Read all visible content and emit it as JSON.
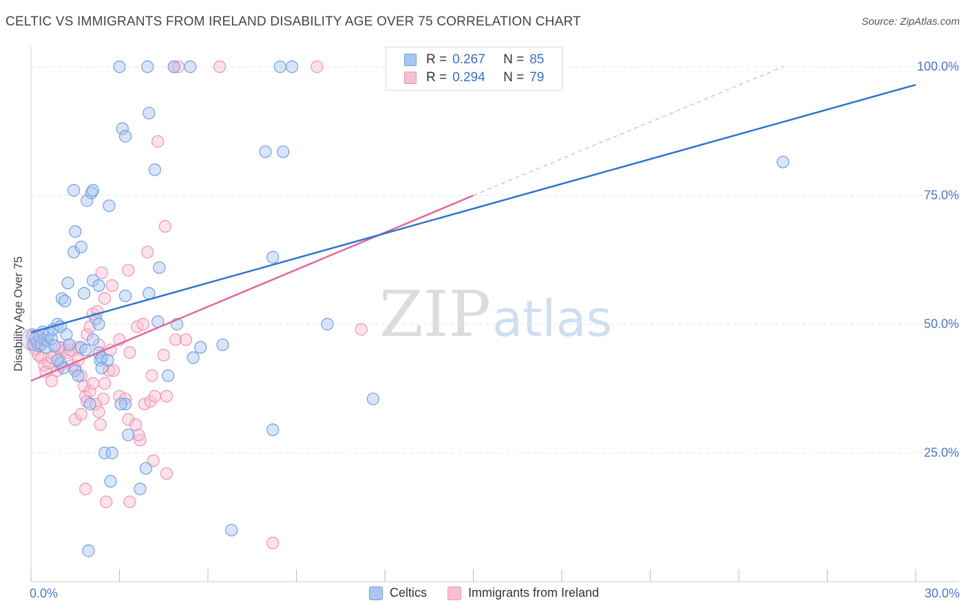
{
  "header": {
    "title": "CELTIC VS IMMIGRANTS FROM IRELAND DISABILITY AGE OVER 75 CORRELATION CHART",
    "source": "Source: ZipAtlas.com"
  },
  "watermark": {
    "zip": "ZIP",
    "atlas": "atlas"
  },
  "legend": {
    "r_label": "R =",
    "n_label": "N =",
    "series": [
      {
        "r": "0.267",
        "n": "85"
      },
      {
        "r": "0.294",
        "n": "79"
      }
    ]
  },
  "bottom_legend": {
    "celtics": "Celtics",
    "ireland": "Immigrants from Ireland"
  },
  "colors": {
    "celtics_fill": "#a9c6ef",
    "celtics_stroke": "#6f9fe0",
    "celtics_line": "#2f72d0",
    "ireland_fill": "#f6bfd2",
    "ireland_stroke": "#ee93b3",
    "ireland_line": "#e0669a",
    "axis_label": "#4a78c2"
  },
  "chart_data": {
    "type": "scatter",
    "title": "CELTIC VS IMMIGRANTS FROM IRELAND DISABILITY AGE OVER 75 CORRELATION CHART",
    "xlabel": "",
    "ylabel": "Disability Age Over 75",
    "xlim": [
      0,
      30
    ],
    "ylim": [
      0,
      105
    ],
    "x_ticks": [
      0,
      3,
      6,
      9,
      12,
      15,
      18,
      21,
      24,
      27,
      30
    ],
    "x_tick_labels": {
      "0": "0.0%",
      "30": "30.0%"
    },
    "y_ticks": [
      25,
      50,
      75,
      100
    ],
    "y_tick_labels": [
      "25.0%",
      "50.0%",
      "75.0%",
      "100.0%"
    ],
    "grid": true,
    "series": [
      {
        "name": "Celtics",
        "r": 0.267,
        "n": 85,
        "trend": {
          "x": [
            0,
            30
          ],
          "y": [
            48.4,
            96.5
          ]
        },
        "points": [
          [
            0.05,
            47.8
          ],
          [
            0.1,
            46.0
          ],
          [
            0.15,
            47.2
          ],
          [
            0.2,
            46.5
          ],
          [
            0.25,
            45.8
          ],
          [
            0.3,
            47.5
          ],
          [
            0.35,
            46.0
          ],
          [
            0.4,
            48.5
          ],
          [
            0.45,
            47.0
          ],
          [
            0.5,
            45.5
          ],
          [
            0.55,
            46.8
          ],
          [
            0.6,
            48.0
          ],
          [
            0.7,
            47.2
          ],
          [
            0.75,
            49.0
          ],
          [
            0.8,
            45.8
          ],
          [
            0.9,
            50.0
          ],
          [
            1.0,
            49.5
          ],
          [
            1.05,
            55.0
          ],
          [
            1.15,
            54.5
          ],
          [
            1.25,
            58.0
          ],
          [
            1.45,
            64.0
          ],
          [
            1.5,
            68.0
          ],
          [
            1.45,
            76.0
          ],
          [
            1.7,
            65.0
          ],
          [
            1.9,
            74.0
          ],
          [
            2.05,
            75.5
          ],
          [
            2.1,
            76.0
          ],
          [
            1.8,
            56.0
          ],
          [
            2.1,
            58.5
          ],
          [
            2.3,
            57.5
          ],
          [
            2.2,
            51.0
          ],
          [
            2.3,
            50.0
          ],
          [
            1.2,
            48.0
          ],
          [
            1.0,
            42.5
          ],
          [
            1.1,
            41.5
          ],
          [
            1.5,
            41.0
          ],
          [
            1.6,
            40.0
          ],
          [
            1.7,
            45.5
          ],
          [
            1.85,
            45.0
          ],
          [
            2.1,
            47.0
          ],
          [
            2.3,
            44.5
          ],
          [
            2.35,
            43.0
          ],
          [
            2.4,
            43.5
          ],
          [
            2.6,
            43.0
          ],
          [
            2.4,
            41.5
          ],
          [
            3.0,
            100.0
          ],
          [
            3.95,
            100.0
          ],
          [
            4.85,
            100.0
          ],
          [
            5.4,
            100.0
          ],
          [
            8.45,
            100.0
          ],
          [
            8.85,
            100.0
          ],
          [
            3.1,
            88.0
          ],
          [
            3.2,
            86.5
          ],
          [
            4.0,
            91.0
          ],
          [
            4.2,
            80.0
          ],
          [
            2.65,
            73.0
          ],
          [
            4.35,
            61.0
          ],
          [
            4.0,
            56.0
          ],
          [
            3.2,
            55.5
          ],
          [
            4.3,
            50.5
          ],
          [
            4.95,
            50.0
          ],
          [
            5.5,
            43.5
          ],
          [
            5.75,
            45.5
          ],
          [
            4.65,
            40.0
          ],
          [
            6.5,
            46.0
          ],
          [
            7.95,
            83.5
          ],
          [
            8.55,
            83.5
          ],
          [
            8.2,
            63.0
          ],
          [
            10.05,
            50.0
          ],
          [
            11.6,
            35.5
          ],
          [
            8.2,
            29.5
          ],
          [
            6.8,
            10.0
          ],
          [
            1.95,
            6.0
          ],
          [
            2.5,
            25.0
          ],
          [
            2.75,
            25.0
          ],
          [
            3.3,
            28.5
          ],
          [
            2.7,
            19.5
          ],
          [
            3.7,
            18.0
          ],
          [
            3.9,
            22.0
          ],
          [
            3.2,
            34.5
          ],
          [
            3.05,
            34.5
          ],
          [
            2.0,
            34.5
          ],
          [
            25.5,
            81.5
          ],
          [
            1.3,
            46.0
          ],
          [
            0.9,
            43.0
          ]
        ]
      },
      {
        "name": "Immigrants from Ireland",
        "r": 0.294,
        "n": 79,
        "trend": {
          "x": [
            0,
            15
          ],
          "y": [
            39.0,
            75.0
          ]
        },
        "trend_extension": {
          "x": [
            15,
            25.5
          ],
          "y": [
            75.0,
            100.0
          ]
        },
        "points": [
          [
            0.05,
            46.0
          ],
          [
            0.15,
            45.0
          ],
          [
            0.25,
            44.0
          ],
          [
            0.35,
            43.5
          ],
          [
            0.45,
            42.0
          ],
          [
            0.5,
            40.8
          ],
          [
            0.6,
            42.5
          ],
          [
            0.7,
            39.0
          ],
          [
            0.8,
            44.0
          ],
          [
            0.9,
            41.0
          ],
          [
            1.0,
            42.0
          ],
          [
            1.05,
            45.5
          ],
          [
            1.15,
            45.0
          ],
          [
            1.25,
            44.5
          ],
          [
            1.35,
            45.0
          ],
          [
            1.4,
            42.0
          ],
          [
            1.5,
            41.5
          ],
          [
            1.6,
            43.0
          ],
          [
            1.7,
            40.0
          ],
          [
            1.8,
            38.0
          ],
          [
            1.85,
            36.0
          ],
          [
            1.9,
            35.0
          ],
          [
            2.0,
            37.0
          ],
          [
            2.1,
            38.5
          ],
          [
            2.2,
            34.5
          ],
          [
            2.3,
            33.0
          ],
          [
            2.35,
            30.5
          ],
          [
            2.45,
            35.5
          ],
          [
            2.5,
            38.5
          ],
          [
            2.65,
            41.0
          ],
          [
            2.8,
            41.0
          ],
          [
            3.0,
            36.0
          ],
          [
            3.2,
            35.5
          ],
          [
            3.3,
            31.5
          ],
          [
            3.55,
            30.5
          ],
          [
            3.7,
            27.5
          ],
          [
            3.85,
            34.5
          ],
          [
            4.05,
            35.0
          ],
          [
            4.1,
            40.0
          ],
          [
            4.2,
            36.0
          ],
          [
            4.5,
            44.0
          ],
          [
            4.6,
            36.0
          ],
          [
            4.9,
            47.0
          ],
          [
            5.25,
            47.0
          ],
          [
            4.55,
            69.0
          ],
          [
            3.95,
            64.0
          ],
          [
            3.3,
            60.5
          ],
          [
            2.4,
            60.0
          ],
          [
            2.75,
            57.5
          ],
          [
            2.5,
            55.0
          ],
          [
            2.1,
            52.0
          ],
          [
            2.25,
            52.5
          ],
          [
            1.9,
            48.0
          ],
          [
            2.3,
            46.0
          ],
          [
            2.7,
            45.0
          ],
          [
            3.0,
            47.0
          ],
          [
            3.35,
            44.5
          ],
          [
            3.6,
            49.5
          ],
          [
            3.8,
            50.0
          ],
          [
            4.3,
            85.5
          ],
          [
            4.85,
            100.0
          ],
          [
            5.0,
            100.0
          ],
          [
            6.4,
            100.0
          ],
          [
            9.7,
            100.0
          ],
          [
            11.2,
            49.0
          ],
          [
            8.2,
            7.5
          ],
          [
            4.6,
            21.0
          ],
          [
            4.15,
            23.5
          ],
          [
            3.65,
            28.5
          ],
          [
            1.85,
            18.0
          ],
          [
            2.55,
            15.5
          ],
          [
            3.35,
            15.5
          ],
          [
            1.5,
            31.5
          ],
          [
            1.7,
            32.5
          ],
          [
            1.3,
            46.0
          ],
          [
            0.95,
            45.5
          ],
          [
            2.0,
            49.5
          ],
          [
            0.7,
            43.5
          ],
          [
            1.6,
            45.5
          ]
        ]
      }
    ]
  }
}
